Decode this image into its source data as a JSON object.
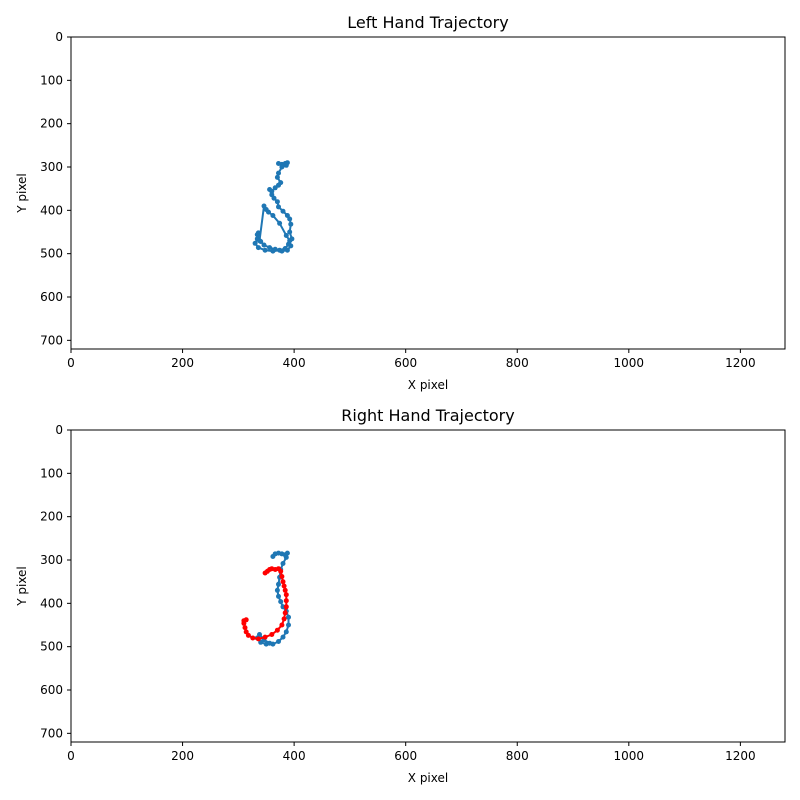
{
  "chart_data": [
    {
      "type": "line",
      "title": "Left Hand Trajectory",
      "xlabel": "X pixel",
      "ylabel": "Y pixel",
      "xlim": [
        0,
        1280
      ],
      "ylim": [
        720,
        0
      ],
      "y_inverted": true,
      "grid": false,
      "xticks": [
        "0",
        "200",
        "400",
        "600",
        "800",
        "1000",
        "1200"
      ],
      "yticks": [
        "0",
        "100",
        "200",
        "300",
        "400",
        "500",
        "600",
        "700"
      ],
      "series": [
        {
          "color": "#1f77b4",
          "marker": "dot",
          "x": [
            372,
            378,
            384,
            388,
            386,
            378,
            372,
            370,
            376,
            372,
            366,
            360,
            356,
            360,
            364,
            370,
            372,
            380,
            388,
            392,
            394,
            392,
            396,
            390,
            384,
            374,
            362,
            348,
            336,
            330,
            334,
            340,
            346,
            356,
            366,
            378,
            388,
            394,
            392,
            386,
            374,
            362,
            354,
            350,
            346,
            338,
            334,
            336
          ],
          "y": [
            292,
            294,
            292,
            290,
            296,
            300,
            314,
            324,
            336,
            342,
            348,
            356,
            352,
            364,
            372,
            380,
            392,
            402,
            412,
            420,
            432,
            450,
            466,
            478,
            488,
            492,
            494,
            492,
            486,
            476,
            466,
            472,
            480,
            486,
            490,
            494,
            492,
            482,
            470,
            458,
            430,
            412,
            404,
            398,
            390,
            470,
            456,
            452
          ]
        }
      ]
    },
    {
      "type": "line",
      "title": "Right Hand Trajectory",
      "xlabel": "X pixel",
      "ylabel": "Y pixel",
      "xlim": [
        0,
        1280
      ],
      "ylim": [
        720,
        0
      ],
      "y_inverted": true,
      "grid": false,
      "xticks": [
        "0",
        "200",
        "400",
        "600",
        "800",
        "1000",
        "1200"
      ],
      "yticks": [
        "0",
        "100",
        "200",
        "300",
        "400",
        "500",
        "600",
        "700"
      ],
      "series": [
        {
          "color": "#1f77b4",
          "marker": "dot",
          "x": [
            362,
            366,
            372,
            378,
            384,
            388,
            386,
            380,
            376,
            374,
            372,
            370,
            372,
            376,
            380,
            386,
            390,
            390,
            386,
            380,
            372,
            362,
            350,
            340,
            334,
            338,
            346,
            356
          ],
          "y": [
            292,
            286,
            284,
            286,
            288,
            284,
            294,
            308,
            322,
            340,
            356,
            370,
            384,
            396,
            408,
            418,
            432,
            450,
            466,
            478,
            488,
            494,
            494,
            490,
            480,
            472,
            484,
            492
          ]
        },
        {
          "color": "#ff0000",
          "marker": "dot",
          "x": [
            348,
            352,
            356,
            360,
            366,
            372,
            376,
            378,
            380,
            382,
            384,
            386,
            386,
            386,
            384,
            382,
            378,
            370,
            360,
            348,
            336,
            326,
            318,
            314,
            312,
            310,
            310,
            314
          ],
          "y": [
            330,
            326,
            322,
            320,
            322,
            320,
            326,
            338,
            350,
            360,
            370,
            380,
            394,
            408,
            422,
            436,
            450,
            462,
            472,
            478,
            482,
            480,
            474,
            466,
            456,
            446,
            440,
            438
          ]
        }
      ]
    }
  ]
}
